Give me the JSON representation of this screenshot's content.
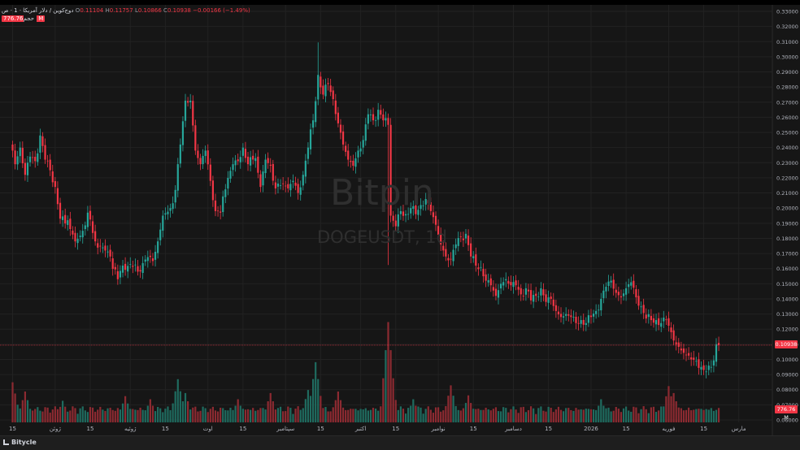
{
  "legend": {
    "symbol": "دوج‌کوین / دلار آمریکا · 1 · ص",
    "open_label": "O",
    "open": "0.11104",
    "high_label": "H",
    "high": "0.11757",
    "low_label": "L",
    "low": "0.10866",
    "close_label": "C",
    "close": "0.10938",
    "change": "−0.00166 (−1.49%)",
    "volume_label": "حجم",
    "volume": "776.76 M"
  },
  "watermark": {
    "brand": "Bitpin",
    "pair": "DOGEUSDT, 1d"
  },
  "footer": {
    "brand": "Bitycle"
  },
  "colors": {
    "up": "#26a69a",
    "down": "#f23645",
    "background": "#161616",
    "grid": "#222222"
  },
  "price_badge": "0.10938",
  "volume_badge": "776.76 M",
  "chart_data": {
    "type": "candlestick",
    "interval": "1d",
    "ylim": [
      0.06,
      0.33
    ],
    "y_ticks": [
      "0.33000",
      "0.32000",
      "0.31000",
      "0.30000",
      "0.29000",
      "0.28000",
      "0.27000",
      "0.26000",
      "0.25000",
      "0.24000",
      "0.23000",
      "0.22000",
      "0.21000",
      "0.20000",
      "0.19000",
      "0.18000",
      "0.17000",
      "0.16000",
      "0.15000",
      "0.14000",
      "0.13000",
      "0.12000",
      "0.11000",
      "0.10000",
      "0.09000",
      "0.08000",
      "0.07000",
      "0.06000"
    ],
    "x_ticks": [
      {
        "label": "15",
        "day": 0
      },
      {
        "label": "ژوئن",
        "day": 17
      },
      {
        "label": "15",
        "day": 31
      },
      {
        "label": "ژوئیه",
        "day": 47
      },
      {
        "label": "15",
        "day": 61
      },
      {
        "label": "اوت",
        "day": 78
      },
      {
        "label": "15",
        "day": 92
      },
      {
        "label": "سپتامبر",
        "day": 109
      },
      {
        "label": "15",
        "day": 123
      },
      {
        "label": "اکتبر",
        "day": 139
      },
      {
        "label": "15",
        "day": 153
      },
      {
        "label": "نوامبر",
        "day": 170
      },
      {
        "label": "15",
        "day": 184
      },
      {
        "label": "دسامبر",
        "day": 200
      },
      {
        "label": "15",
        "day": 214
      },
      {
        "label": "2026",
        "day": 231
      },
      {
        "label": "15",
        "day": 245
      },
      {
        "label": "فوریه",
        "day": 262
      },
      {
        "label": "15",
        "day": 276
      },
      {
        "label": "مارس",
        "day": 290
      }
    ],
    "close_anchors": [
      [
        0,
        0.238
      ],
      [
        1,
        0.229
      ],
      [
        3,
        0.24
      ],
      [
        5,
        0.222
      ],
      [
        7,
        0.234
      ],
      [
        9,
        0.231
      ],
      [
        11,
        0.248
      ],
      [
        13,
        0.232
      ],
      [
        15,
        0.225
      ],
      [
        17,
        0.214
      ],
      [
        19,
        0.193
      ],
      [
        22,
        0.192
      ],
      [
        25,
        0.178
      ],
      [
        28,
        0.185
      ],
      [
        30,
        0.197
      ],
      [
        33,
        0.178
      ],
      [
        36,
        0.174
      ],
      [
        39,
        0.168
      ],
      [
        42,
        0.153
      ],
      [
        44,
        0.162
      ],
      [
        47,
        0.163
      ],
      [
        50,
        0.158
      ],
      [
        53,
        0.166
      ],
      [
        56,
        0.165
      ],
      [
        58,
        0.178
      ],
      [
        60,
        0.195
      ],
      [
        63,
        0.2
      ],
      [
        65,
        0.212
      ],
      [
        67,
        0.242
      ],
      [
        69,
        0.271
      ],
      [
        71,
        0.271
      ],
      [
        73,
        0.238
      ],
      [
        75,
        0.229
      ],
      [
        77,
        0.238
      ],
      [
        79,
        0.218
      ],
      [
        81,
        0.198
      ],
      [
        83,
        0.197
      ],
      [
        86,
        0.22
      ],
      [
        88,
        0.229
      ],
      [
        90,
        0.231
      ],
      [
        92,
        0.24
      ],
      [
        94,
        0.229
      ],
      [
        97,
        0.233
      ],
      [
        99,
        0.214
      ],
      [
        101,
        0.232
      ],
      [
        103,
        0.228
      ],
      [
        105,
        0.213
      ],
      [
        108,
        0.216
      ],
      [
        110,
        0.213
      ],
      [
        112,
        0.218
      ],
      [
        114,
        0.21
      ],
      [
        116,
        0.222
      ],
      [
        118,
        0.24
      ],
      [
        120,
        0.258
      ],
      [
        122,
        0.288
      ],
      [
        124,
        0.275
      ],
      [
        126,
        0.282
      ],
      [
        128,
        0.272
      ],
      [
        130,
        0.256
      ],
      [
        132,
        0.242
      ],
      [
        134,
        0.232
      ],
      [
        136,
        0.228
      ],
      [
        138,
        0.238
      ],
      [
        140,
        0.245
      ],
      [
        142,
        0.262
      ],
      [
        144,
        0.258
      ],
      [
        146,
        0.265
      ],
      [
        148,
        0.258
      ],
      [
        150,
        0.255
      ],
      [
        151,
        0.195
      ],
      [
        153,
        0.188
      ],
      [
        155,
        0.198
      ],
      [
        157,
        0.196
      ],
      [
        159,
        0.2
      ],
      [
        161,
        0.196
      ],
      [
        163,
        0.202
      ],
      [
        165,
        0.206
      ],
      [
        167,
        0.198
      ],
      [
        169,
        0.189
      ],
      [
        171,
        0.176
      ],
      [
        173,
        0.168
      ],
      [
        175,
        0.166
      ],
      [
        177,
        0.176
      ],
      [
        179,
        0.181
      ],
      [
        181,
        0.183
      ],
      [
        183,
        0.168
      ],
      [
        185,
        0.162
      ],
      [
        187,
        0.161
      ],
      [
        189,
        0.152
      ],
      [
        191,
        0.149
      ],
      [
        193,
        0.142
      ],
      [
        195,
        0.15
      ],
      [
        197,
        0.153
      ],
      [
        199,
        0.149
      ],
      [
        201,
        0.149
      ],
      [
        203,
        0.143
      ],
      [
        205,
        0.147
      ],
      [
        207,
        0.139
      ],
      [
        209,
        0.142
      ],
      [
        211,
        0.147
      ],
      [
        213,
        0.138
      ],
      [
        215,
        0.14
      ],
      [
        217,
        0.132
      ],
      [
        219,
        0.128
      ],
      [
        221,
        0.13
      ],
      [
        223,
        0.128
      ],
      [
        225,
        0.124
      ],
      [
        227,
        0.126
      ],
      [
        229,
        0.124
      ],
      [
        231,
        0.128
      ],
      [
        233,
        0.132
      ],
      [
        235,
        0.14
      ],
      [
        237,
        0.148
      ],
      [
        239,
        0.152
      ],
      [
        241,
        0.144
      ],
      [
        243,
        0.141
      ],
      [
        245,
        0.147
      ],
      [
        247,
        0.151
      ],
      [
        249,
        0.141
      ],
      [
        251,
        0.135
      ],
      [
        253,
        0.127
      ],
      [
        255,
        0.126
      ],
      [
        257,
        0.126
      ],
      [
        259,
        0.124
      ],
      [
        261,
        0.126
      ],
      [
        263,
        0.118
      ],
      [
        265,
        0.11
      ],
      [
        267,
        0.106
      ],
      [
        269,
        0.103
      ],
      [
        271,
        0.1
      ],
      [
        273,
        0.099
      ],
      [
        275,
        0.095
      ],
      [
        276,
        0.093
      ],
      [
        277,
        0.092
      ],
      [
        279,
        0.095
      ],
      [
        281,
        0.11
      ],
      [
        282,
        0.1094
      ]
    ],
    "volume_peaks": [
      [
        0,
        0.52
      ],
      [
        5,
        0.4
      ],
      [
        20,
        0.28
      ],
      [
        45,
        0.34
      ],
      [
        55,
        0.3
      ],
      [
        66,
        0.56
      ],
      [
        69,
        0.38
      ],
      [
        90,
        0.3
      ],
      [
        103,
        0.38
      ],
      [
        118,
        0.42
      ],
      [
        121,
        0.78
      ],
      [
        130,
        0.4
      ],
      [
        150,
        1.3
      ],
      [
        151,
        0.66
      ],
      [
        160,
        0.3
      ],
      [
        175,
        0.48
      ],
      [
        182,
        0.35
      ],
      [
        235,
        0.3
      ],
      [
        262,
        0.47
      ],
      [
        264,
        0.38
      ]
    ],
    "volume_max": "1.30 B"
  }
}
